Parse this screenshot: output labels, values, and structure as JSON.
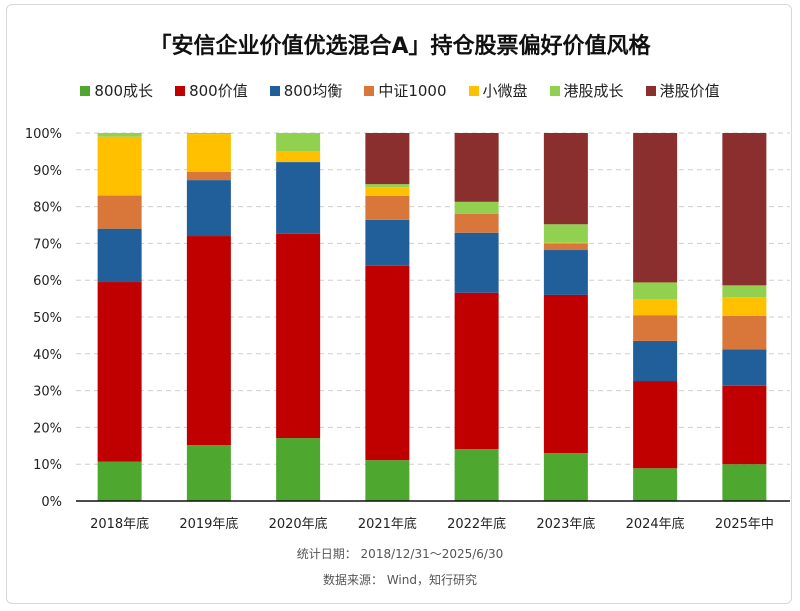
{
  "chart_data": {
    "type": "bar",
    "stacked": true,
    "title": "「安信企业价值优选混合A」持仓股票偏好价值风格",
    "categories": [
      "2018年底",
      "2019年底",
      "2020年底",
      "2021年底",
      "2022年底",
      "2023年底",
      "2024年底",
      "2025年中"
    ],
    "ylim": [
      0,
      100
    ],
    "yticks": [
      "0%",
      "10%",
      "20%",
      "30%",
      "40%",
      "50%",
      "60%",
      "70%",
      "80%",
      "90%",
      "100%"
    ],
    "grid": true,
    "legend_position": "top",
    "series": [
      {
        "name": "800成长",
        "color": "#4ea72e",
        "values": [
          10.7,
          15.2,
          17.1,
          11.1,
          14.1,
          13.0,
          8.9,
          10.0
        ]
      },
      {
        "name": "800价值",
        "color": "#c00000",
        "values": [
          48.8,
          56.8,
          55.5,
          52.8,
          42.5,
          43.0,
          23.7,
          21.3
        ]
      },
      {
        "name": "800均衡",
        "color": "#215f9a",
        "values": [
          14.5,
          15.2,
          19.5,
          12.5,
          16.3,
          12.2,
          10.9,
          9.9
        ]
      },
      {
        "name": "中证1000",
        "color": "#d9773a",
        "values": [
          9.0,
          2.2,
          0.0,
          6.5,
          5.1,
          1.8,
          7.0,
          9.1
        ]
      },
      {
        "name": "小微盘",
        "color": "#ffc000",
        "values": [
          16.0,
          10.3,
          3.0,
          2.4,
          0.0,
          0.2,
          4.3,
          5.1
        ]
      },
      {
        "name": "港股成长",
        "color": "#92d050",
        "values": [
          1.0,
          0.3,
          4.9,
          0.8,
          3.3,
          5.0,
          4.6,
          3.2
        ]
      },
      {
        "name": "港股价值",
        "color": "#8b2e2e",
        "values": [
          0.0,
          0.0,
          0.0,
          13.9,
          18.7,
          24.8,
          40.6,
          41.4
        ]
      }
    ]
  },
  "footer": {
    "date_range": "统计日期：  2018/12/31～2025/6/30",
    "source": "数据来源：  Wind，知行研究"
  }
}
